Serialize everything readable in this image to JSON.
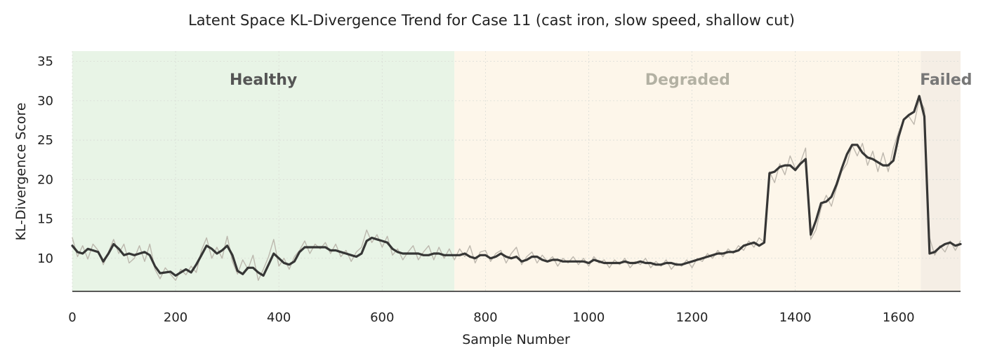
{
  "chart_data": {
    "type": "line",
    "title": "Latent Space KL-Divergence Trend for Case 11 (cast iron, slow speed, shallow cut)",
    "xlabel": "Sample Number",
    "ylabel": "KL-Divergence Score",
    "xlim": [
      0,
      1720
    ],
    "ylim": [
      5.8,
      36.3
    ],
    "x_ticks": [
      0,
      200,
      400,
      600,
      800,
      1000,
      1200,
      1400,
      1600
    ],
    "y_ticks": [
      10,
      15,
      20,
      25,
      30,
      35
    ],
    "grid": true,
    "regions": [
      {
        "label": "Healthy",
        "x_start": 0,
        "x_end": 740,
        "color": "#e8f4e6",
        "label_color": "#555555"
      },
      {
        "label": "Degraded",
        "x_start": 740,
        "x_end": 1643,
        "color": "#fdf6ea",
        "label_color": "#b3b1a3"
      },
      {
        "label": "Failed",
        "x_start": 1643,
        "x_end": 1720,
        "color": "#f5eee5",
        "label_color": "#777777"
      }
    ],
    "series": [
      {
        "style": "raw",
        "color": "#b7b1a7",
        "x": [
          0,
          10,
          20,
          30,
          40,
          50,
          60,
          70,
          80,
          90,
          100,
          110,
          120,
          130,
          140,
          150,
          160,
          170,
          180,
          190,
          200,
          210,
          220,
          230,
          240,
          250,
          260,
          270,
          280,
          290,
          300,
          310,
          320,
          330,
          340,
          350,
          360,
          370,
          380,
          390,
          400,
          410,
          420,
          430,
          440,
          450,
          460,
          470,
          480,
          490,
          500,
          510,
          520,
          530,
          540,
          550,
          560,
          570,
          580,
          590,
          600,
          610,
          620,
          630,
          640,
          650,
          660,
          670,
          680,
          690,
          700,
          710,
          720,
          730,
          740,
          750,
          760,
          770,
          780,
          790,
          800,
          810,
          820,
          830,
          840,
          850,
          860,
          870,
          880,
          890,
          900,
          910,
          920,
          930,
          940,
          950,
          960,
          970,
          980,
          990,
          1000,
          1010,
          1020,
          1030,
          1040,
          1050,
          1060,
          1070,
          1080,
          1090,
          1100,
          1110,
          1120,
          1130,
          1140,
          1150,
          1160,
          1170,
          1180,
          1190,
          1200,
          1210,
          1220,
          1230,
          1240,
          1250,
          1260,
          1270,
          1280,
          1290,
          1300,
          1310,
          1320,
          1330,
          1340,
          1350,
          1360,
          1370,
          1380,
          1390,
          1400,
          1410,
          1420,
          1430,
          1440,
          1450,
          1460,
          1470,
          1480,
          1490,
          1500,
          1510,
          1520,
          1530,
          1540,
          1550,
          1560,
          1570,
          1580,
          1590,
          1600,
          1610,
          1620,
          1630,
          1640,
          1650,
          1660,
          1670,
          1680,
          1690,
          1700,
          1710,
          1720
        ],
        "y": [
          12.6,
          10.2,
          11.6,
          9.9,
          11.8,
          11.0,
          9.2,
          10.8,
          12.4,
          10.6,
          11.8,
          9.4,
          10.0,
          11.6,
          9.6,
          11.8,
          8.6,
          7.4,
          8.8,
          8.0,
          7.2,
          8.6,
          7.9,
          9.0,
          8.2,
          11.0,
          12.6,
          10.0,
          11.4,
          10.0,
          12.8,
          9.6,
          8.0,
          9.8,
          8.6,
          10.4,
          7.2,
          8.6,
          10.2,
          12.4,
          9.0,
          10.0,
          8.6,
          10.2,
          11.0,
          12.2,
          10.6,
          11.8,
          11.2,
          12.0,
          10.6,
          11.8,
          10.2,
          11.0,
          9.6,
          10.8,
          11.4,
          13.6,
          12.0,
          13.0,
          11.4,
          12.8,
          10.4,
          11.2,
          9.8,
          10.8,
          11.6,
          9.8,
          10.8,
          11.6,
          9.8,
          11.4,
          10.0,
          11.2,
          9.8,
          11.2,
          10.2,
          11.6,
          9.4,
          10.8,
          11.0,
          9.6,
          10.6,
          11.0,
          9.4,
          10.6,
          11.4,
          9.2,
          10.2,
          10.8,
          9.4,
          10.4,
          9.6,
          10.2,
          9.0,
          10.0,
          9.4,
          10.2,
          9.2,
          10.0,
          9.0,
          10.2,
          9.4,
          9.8,
          8.8,
          9.8,
          9.2,
          10.0,
          8.8,
          9.6,
          9.2,
          10.0,
          8.8,
          9.6,
          9.0,
          9.8,
          8.6,
          9.4,
          9.0,
          9.8,
          8.8,
          10.0,
          9.6,
          10.6,
          10.0,
          11.0,
          10.2,
          11.2,
          10.6,
          11.6,
          11.0,
          12.2,
          11.4,
          12.6,
          12.0,
          21.0,
          19.6,
          22.0,
          20.6,
          23.0,
          21.4,
          22.2,
          24.0,
          12.4,
          13.6,
          16.4,
          18.0,
          16.6,
          19.0,
          21.0,
          22.0,
          24.4,
          23.0,
          24.6,
          21.8,
          23.6,
          21.0,
          23.4,
          21.0,
          24.0,
          26.0,
          27.6,
          28.0,
          27.0,
          30.2,
          29.0,
          12.6,
          10.4,
          11.6,
          10.8,
          12.2,
          11.0,
          12.2
        ]
      },
      {
        "style": "smoothed",
        "color": "#2c2c2c",
        "x": [
          0,
          10,
          20,
          30,
          40,
          50,
          60,
          70,
          80,
          90,
          100,
          110,
          120,
          130,
          140,
          150,
          160,
          170,
          180,
          190,
          200,
          210,
          220,
          230,
          240,
          250,
          260,
          270,
          280,
          290,
          300,
          310,
          320,
          330,
          340,
          350,
          360,
          370,
          380,
          390,
          400,
          410,
          420,
          430,
          440,
          450,
          460,
          470,
          480,
          490,
          500,
          510,
          520,
          530,
          540,
          550,
          560,
          570,
          580,
          590,
          600,
          610,
          620,
          630,
          640,
          650,
          660,
          670,
          680,
          690,
          700,
          710,
          720,
          730,
          740,
          750,
          760,
          770,
          780,
          790,
          800,
          810,
          820,
          830,
          840,
          850,
          860,
          870,
          880,
          890,
          900,
          910,
          920,
          930,
          940,
          950,
          960,
          970,
          980,
          990,
          1000,
          1010,
          1020,
          1030,
          1040,
          1050,
          1060,
          1070,
          1080,
          1090,
          1100,
          1110,
          1120,
          1130,
          1140,
          1150,
          1160,
          1170,
          1180,
          1190,
          1200,
          1210,
          1220,
          1230,
          1240,
          1250,
          1260,
          1270,
          1280,
          1290,
          1300,
          1310,
          1320,
          1330,
          1340,
          1350,
          1360,
          1370,
          1380,
          1390,
          1400,
          1410,
          1420,
          1430,
          1440,
          1450,
          1460,
          1470,
          1480,
          1490,
          1500,
          1510,
          1520,
          1530,
          1540,
          1550,
          1560,
          1570,
          1580,
          1590,
          1600,
          1610,
          1620,
          1630,
          1640,
          1650,
          1660,
          1670,
          1680,
          1690,
          1700,
          1710,
          1720
        ],
        "y": [
          11.6,
          10.8,
          10.6,
          11.2,
          11.0,
          10.8,
          9.6,
          10.6,
          11.8,
          11.2,
          10.4,
          10.6,
          10.4,
          10.6,
          10.8,
          10.4,
          9.0,
          8.1,
          8.2,
          8.3,
          7.8,
          8.2,
          8.6,
          8.2,
          9.2,
          10.4,
          11.6,
          11.2,
          10.6,
          11.0,
          11.6,
          10.4,
          8.4,
          8.0,
          8.8,
          8.8,
          8.2,
          7.8,
          9.2,
          10.6,
          10.0,
          9.4,
          9.2,
          9.6,
          10.8,
          11.4,
          11.4,
          11.4,
          11.4,
          11.4,
          11.0,
          11.0,
          10.8,
          10.6,
          10.4,
          10.2,
          10.6,
          12.2,
          12.6,
          12.4,
          12.2,
          12.0,
          11.2,
          10.8,
          10.6,
          10.6,
          10.6,
          10.6,
          10.4,
          10.4,
          10.6,
          10.6,
          10.4,
          10.4,
          10.4,
          10.4,
          10.6,
          10.2,
          10.0,
          10.4,
          10.4,
          10.0,
          10.2,
          10.6,
          10.2,
          10.0,
          10.2,
          9.6,
          9.8,
          10.2,
          10.2,
          9.8,
          9.6,
          9.8,
          9.8,
          9.6,
          9.6,
          9.6,
          9.6,
          9.6,
          9.4,
          9.8,
          9.6,
          9.4,
          9.4,
          9.4,
          9.4,
          9.6,
          9.4,
          9.4,
          9.6,
          9.4,
          9.4,
          9.2,
          9.2,
          9.4,
          9.4,
          9.2,
          9.2,
          9.4,
          9.6,
          9.8,
          10.0,
          10.2,
          10.4,
          10.6,
          10.6,
          10.8,
          10.8,
          11.0,
          11.6,
          11.8,
          12.0,
          11.6,
          12.0,
          20.8,
          21.0,
          21.6,
          21.8,
          21.8,
          21.2,
          22.0,
          22.6,
          13.0,
          14.8,
          17.0,
          17.2,
          17.8,
          19.4,
          21.4,
          23.2,
          24.4,
          24.4,
          23.4,
          22.8,
          22.6,
          22.2,
          21.8,
          21.8,
          22.4,
          25.4,
          27.6,
          28.2,
          28.6,
          30.6,
          28.0,
          10.6,
          10.8,
          11.4,
          11.8,
          12.0,
          11.6,
          11.8
        ]
      }
    ]
  }
}
